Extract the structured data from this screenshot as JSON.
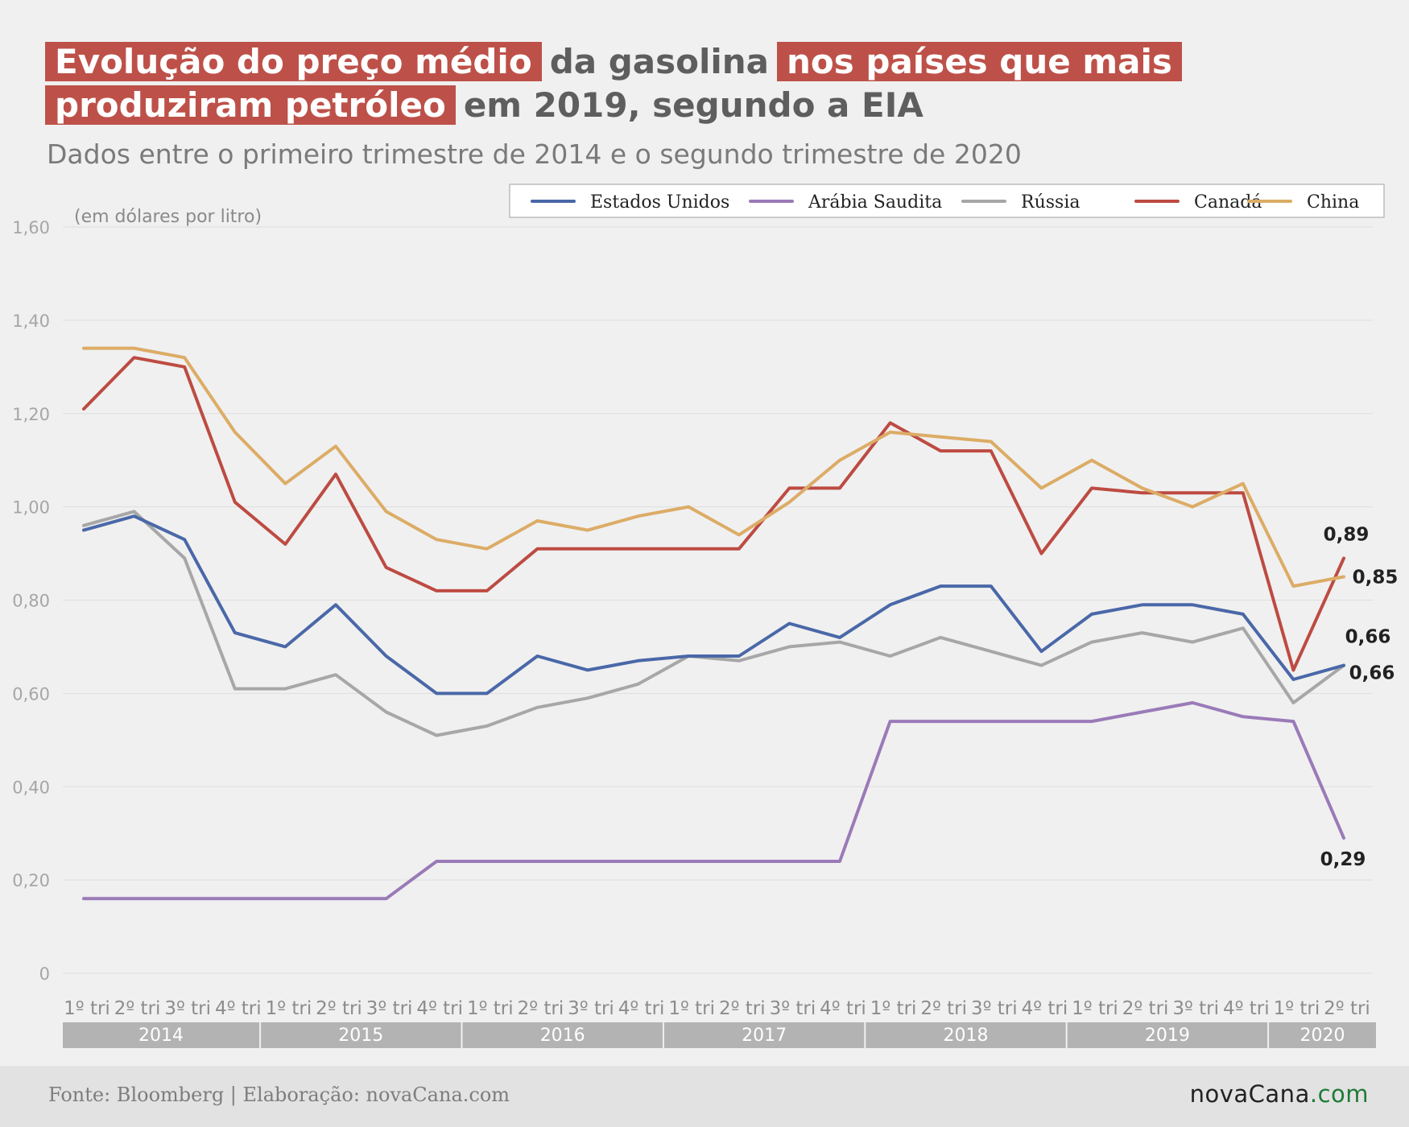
{
  "title": {
    "segments": [
      {
        "text": "Evolução do preço médio",
        "highlight": true,
        "line": 0
      },
      {
        "text": "da gasolina",
        "highlight": false,
        "line": 0
      },
      {
        "text": "nos países que mais",
        "highlight": true,
        "line": 0
      },
      {
        "text": "produziram petróleo",
        "highlight": true,
        "line": 1
      },
      {
        "text": "em 2019, segundo a EIA",
        "highlight": false,
        "line": 1
      }
    ]
  },
  "subtitle": "Dados entre o primeiro trimestre de 2014 e o segundo trimestre de 2020",
  "footer": {
    "source": "Fonte: Bloomberg | Elaboração: novaCana.com",
    "logo_main": "novaCana",
    "logo_dot": ".",
    "logo_com": "com"
  },
  "colors": {
    "highlight": "#bd5149",
    "background": "#f0f0f0",
    "year_band": "#b3b3b3"
  },
  "chart_data": {
    "type": "line",
    "unit_label": "(em dólares por litro)",
    "ylim": [
      0,
      1.6
    ],
    "yticks": [
      "0",
      "0,20",
      "0,40",
      "0,60",
      "0,80",
      "1,00",
      "1,20",
      "1,40",
      "1,60"
    ],
    "grid": true,
    "legend_position": "top-right",
    "x": [
      "1º tri",
      "2º tri",
      "3º tri",
      "4º tri",
      "1º tri",
      "2º tri",
      "3º tri",
      "4º tri",
      "1º tri",
      "2º tri",
      "3º tri",
      "4º tri",
      "1º tri",
      "2º tri",
      "3º tri",
      "4º tri",
      "1º tri",
      "2º tri",
      "3º tri",
      "4º tri",
      "1º tri",
      "2º tri",
      "3º tri",
      "4º tri",
      "1º tri",
      "2º tri"
    ],
    "years": [
      {
        "label": "2014",
        "quarters": 4
      },
      {
        "label": "2015",
        "quarters": 4
      },
      {
        "label": "2016",
        "quarters": 4
      },
      {
        "label": "2017",
        "quarters": 4
      },
      {
        "label": "2018",
        "quarters": 4
      },
      {
        "label": "2019",
        "quarters": 4
      },
      {
        "label": "2020",
        "quarters": 2
      }
    ],
    "series": [
      {
        "name": "Estados Unidos",
        "color": "#4a68a8",
        "values": [
          0.95,
          0.98,
          0.93,
          0.73,
          0.7,
          0.79,
          0.68,
          0.6,
          0.6,
          0.68,
          0.65,
          0.67,
          0.68,
          0.68,
          0.75,
          0.72,
          0.79,
          0.83,
          0.83,
          0.69,
          0.77,
          0.79,
          0.79,
          0.77,
          0.63,
          0.66
        ],
        "end_label": "0,66"
      },
      {
        "name": "Arábia Saudita",
        "color": "#9a7ab8",
        "values": [
          0.16,
          0.16,
          0.16,
          0.16,
          0.16,
          0.16,
          0.16,
          0.24,
          0.24,
          0.24,
          0.24,
          0.24,
          0.24,
          0.24,
          0.24,
          0.24,
          0.54,
          0.54,
          0.54,
          0.54,
          0.54,
          0.56,
          0.58,
          0.55,
          0.54,
          0.29
        ],
        "end_label": "0,29"
      },
      {
        "name": "Rússia",
        "color": "#a7a7a7",
        "values": [
          0.96,
          0.99,
          0.89,
          0.61,
          0.61,
          0.64,
          0.56,
          0.51,
          0.53,
          0.57,
          0.59,
          0.62,
          0.68,
          0.67,
          0.7,
          0.71,
          0.68,
          0.72,
          0.69,
          0.66,
          0.71,
          0.73,
          0.71,
          0.74,
          0.58,
          0.66
        ],
        "end_label": "0,66"
      },
      {
        "name": "Canadá",
        "color": "#bd4b42",
        "values": [
          1.21,
          1.32,
          1.3,
          1.01,
          0.92,
          1.07,
          0.87,
          0.82,
          0.82,
          0.91,
          0.91,
          0.91,
          0.91,
          0.91,
          1.04,
          1.04,
          1.18,
          1.12,
          1.12,
          0.9,
          1.04,
          1.03,
          1.03,
          1.03,
          0.65,
          0.89
        ],
        "end_label": "0,89"
      },
      {
        "name": "China",
        "color": "#dcac66",
        "values": [
          1.34,
          1.34,
          1.32,
          1.16,
          1.05,
          1.13,
          0.99,
          0.93,
          0.91,
          0.97,
          0.95,
          0.98,
          1.0,
          0.94,
          1.01,
          1.1,
          1.16,
          1.15,
          1.14,
          1.04,
          1.1,
          1.04,
          1.0,
          1.05,
          0.83,
          0.85
        ],
        "end_label": "0,85"
      }
    ]
  }
}
